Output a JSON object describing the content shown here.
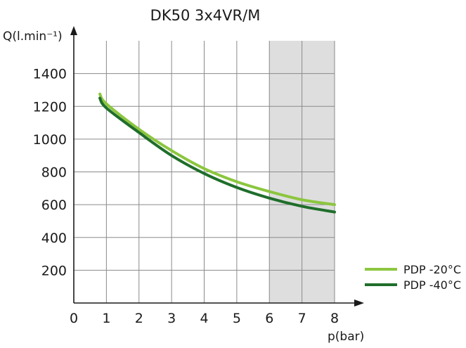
{
  "chart_data": {
    "type": "line",
    "title": "DK50 3x4VR/M",
    "xlabel": "p(bar)",
    "ylabel": "Q(l.min⁻¹)",
    "xlim": [
      0,
      8
    ],
    "ylim": [
      0,
      1600
    ],
    "xticks": [
      0,
      1,
      2,
      3,
      4,
      5,
      6,
      7,
      8
    ],
    "yticks": [
      200,
      400,
      600,
      800,
      1000,
      1200,
      1400
    ],
    "grid": true,
    "legend_position": "bottom-right",
    "shaded_region": {
      "x_from": 6,
      "x_to": 8,
      "color": "#dedede"
    },
    "series": [
      {
        "name": "PDP -20°C",
        "color": "#8cc63f",
        "x": [
          0.8,
          1,
          2,
          3,
          4,
          5,
          6,
          7,
          8
        ],
        "y": [
          1275,
          1215,
          1060,
          930,
          820,
          740,
          680,
          630,
          600
        ]
      },
      {
        "name": "PDP -40°C",
        "color": "#1f6e2b",
        "x": [
          0.8,
          1,
          2,
          3,
          4,
          5,
          6,
          7,
          8
        ],
        "y": [
          1250,
          1190,
          1040,
          900,
          790,
          705,
          640,
          590,
          555
        ]
      }
    ]
  }
}
